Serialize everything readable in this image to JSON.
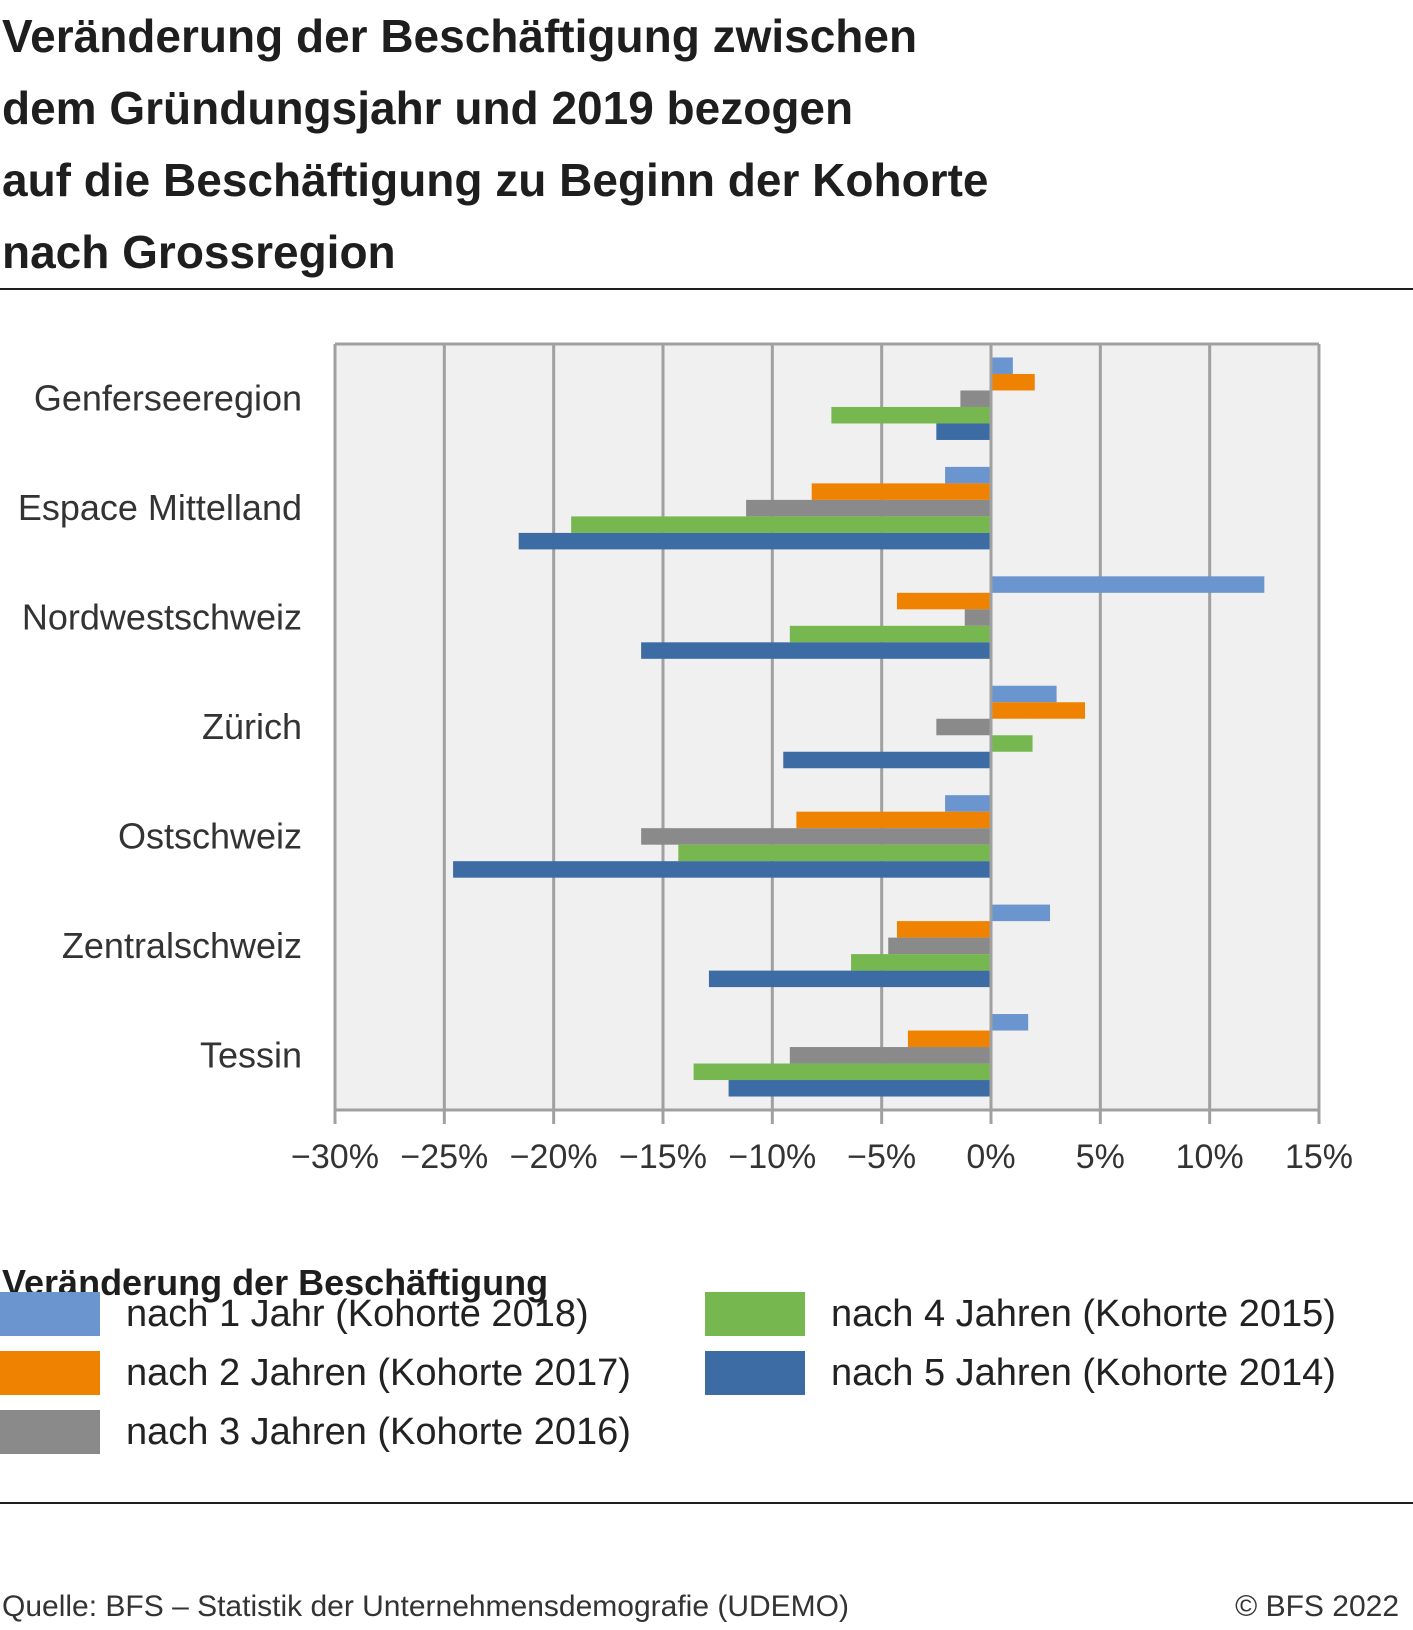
{
  "title_lines": [
    "Veränderung der Beschäftigung zwischen",
    "dem Gründungsjahr und 2019 bezogen",
    "auf die Beschäftigung zu Beginn der Kohorte",
    "nach Grossregion"
  ],
  "legend": {
    "title": "Veränderung der Beschäftigung",
    "items": [
      {
        "label": "nach 1 Jahr (Kohorte 2018)",
        "color": "#6a95cf"
      },
      {
        "label": "nach 2 Jahren (Kohorte 2017)",
        "color": "#ef8200"
      },
      {
        "label": "nach 3 Jahren (Kohorte 2016)",
        "color": "#8a8a8a"
      },
      {
        "label": "nach 4 Jahren (Kohorte 2015)",
        "color": "#76b74f"
      },
      {
        "label": "nach 5 Jahren (Kohorte 2014)",
        "color": "#3d6ca5"
      }
    ]
  },
  "footer": {
    "source": "Quelle: BFS – Statistik der Unternehmensdemografie (UDEMO)",
    "copyright": "© BFS 2022"
  },
  "chart_data": {
    "type": "bar",
    "orientation": "horizontal",
    "title": "Veränderung der Beschäftigung zwischen dem Gründungsjahr und 2019 bezogen auf die Beschäftigung zu Beginn der Kohorte nach Grossregion",
    "xlabel": "",
    "ylabel": "",
    "categories": [
      "Genferseeregion",
      "Espace Mittelland",
      "Nordwestschweiz",
      "Zürich",
      "Ostschweiz",
      "Zentralschweiz",
      "Tessin"
    ],
    "series": [
      {
        "name": "nach 1 Jahr (Kohorte 2018)",
        "color": "#6a95cf",
        "values": [
          1.0,
          -2.1,
          12.5,
          3.0,
          -2.1,
          2.7,
          1.7
        ]
      },
      {
        "name": "nach 2 Jahren (Kohorte 2017)",
        "color": "#ef8200",
        "values": [
          2.0,
          -8.2,
          -4.3,
          4.3,
          -8.9,
          -4.3,
          -3.8
        ]
      },
      {
        "name": "nach 3 Jahren (Kohorte 2016)",
        "color": "#8a8a8a",
        "values": [
          -1.4,
          -11.2,
          -1.2,
          -2.5,
          -16.0,
          -4.7,
          -9.2
        ]
      },
      {
        "name": "nach 4 Jahren (Kohorte 2015)",
        "color": "#76b74f",
        "values": [
          -7.3,
          -19.2,
          -9.2,
          1.9,
          -14.3,
          -6.4,
          -13.6
        ]
      },
      {
        "name": "nach 5 Jahren (Kohorte 2014)",
        "color": "#3d6ca5",
        "values": [
          -2.5,
          -21.6,
          -16.0,
          -9.5,
          -24.6,
          -12.9,
          -12.0
        ]
      }
    ],
    "xlim": [
      -30,
      15
    ],
    "xticks": [
      -30,
      -25,
      -20,
      -15,
      -10,
      -5,
      0,
      5,
      10,
      15
    ],
    "xtick_labels": [
      "−30%",
      "−25%",
      "−20%",
      "−15%",
      "−10%",
      "−5%",
      "0%",
      "5%",
      "10%",
      "15%"
    ],
    "grid": true,
    "plot_background": "#f0f0f0",
    "grid_color": "#a0a0a0",
    "legend_position": "bottom"
  }
}
